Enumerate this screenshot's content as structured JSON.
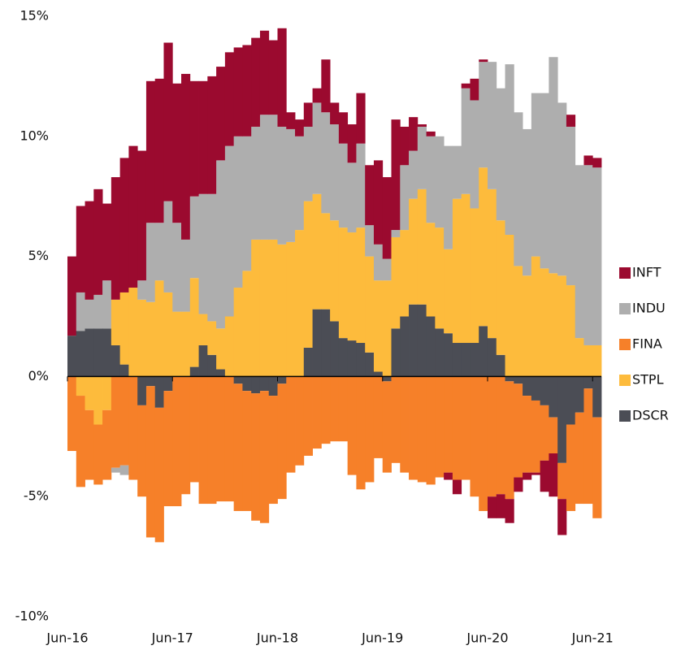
{
  "chart_data": {
    "type": "stacked_bar",
    "categories": [
      "Jun-16",
      null,
      null,
      null,
      null,
      null,
      null,
      null,
      null,
      null,
      null,
      null,
      "Jun-17",
      null,
      null,
      null,
      null,
      null,
      null,
      null,
      null,
      null,
      null,
      null,
      "Jun-18",
      null,
      null,
      null,
      null,
      null,
      null,
      null,
      null,
      null,
      null,
      null,
      "Jun-19",
      null,
      null,
      null,
      null,
      null,
      null,
      null,
      null,
      null,
      null,
      null,
      "Jun-20",
      null,
      null,
      null,
      null,
      null,
      null,
      null,
      null,
      null,
      null,
      null,
      "Jun-21"
    ],
    "series": [
      {
        "name": "DSCR",
        "color": "#4b4d55",
        "values": [
          1.7,
          1.9,
          2.0,
          2.0,
          2.0,
          1.3,
          0.5,
          0.0,
          -1.2,
          -0.4,
          -1.3,
          -0.6,
          0,
          0,
          0.4,
          1.3,
          0.9,
          0.3,
          0,
          -0.3,
          -0.6,
          -0.7,
          -0.6,
          -0.8,
          -0.3,
          0,
          0,
          1.2,
          2.8,
          2.8,
          2.3,
          1.6,
          1.5,
          1.4,
          1.0,
          0.2,
          -0.2,
          2.0,
          2.5,
          3.0,
          3.0,
          2.5,
          2.0,
          1.8,
          1.4,
          1.4,
          1.4,
          2.1,
          1.6,
          0.9,
          -0.2,
          -0.3,
          -0.8,
          -1.0,
          -1.2,
          -1.7,
          -3.6,
          -2.0,
          -1.5,
          -0.5,
          -1.7
        ]
      },
      {
        "name": "STPL",
        "color": "#fdbb3c",
        "values": [
          0,
          -0.8,
          -1.4,
          -2.0,
          -1.4,
          1.9,
          3.0,
          3.7,
          3.2,
          3.1,
          4.0,
          3.5,
          2.7,
          2.7,
          3.7,
          1.3,
          1.4,
          1.7,
          2.5,
          3.7,
          4.4,
          5.7,
          5.7,
          5.7,
          5.5,
          5.6,
          6.1,
          6.1,
          4.8,
          4.0,
          4.2,
          4.6,
          4.5,
          4.8,
          4.0,
          3.8,
          4.0,
          3.8,
          3.6,
          4.4,
          4.8,
          3.9,
          4.2,
          3.5,
          6.0,
          6.2,
          5.6,
          6.6,
          6.2,
          5.6,
          5.9,
          4.6,
          4.2,
          5.0,
          4.5,
          4.3,
          4.2,
          3.8,
          1.6,
          1.3,
          1.3
        ]
      },
      {
        "name": "FINA",
        "color": "#f68029",
        "values": [
          -3.1,
          -3.8,
          -2.9,
          -2.5,
          -2.9,
          -3.8,
          -3.7,
          -4.3,
          -3.8,
          -6.3,
          -5.6,
          -4.8,
          -5.4,
          -4.9,
          -4.4,
          -5.3,
          -5.3,
          -5.2,
          -5.2,
          -5.3,
          -5.0,
          -5.3,
          -5.5,
          -4.5,
          -4.8,
          -4.0,
          -3.7,
          -3.3,
          -3.0,
          -2.8,
          -2.7,
          -2.7,
          -4.1,
          -4.7,
          -4.4,
          -3.4,
          -3.8,
          -3.6,
          -4.0,
          -4.3,
          -4.4,
          -4.5,
          -4.2,
          -4.0,
          -4.3,
          -4.3,
          -5.0,
          -5.6,
          -5.0,
          -4.9,
          -4.9,
          -3.9,
          -3.2,
          -3.0,
          -2.3,
          -1.5,
          -1.5,
          -3.6,
          -3.8,
          -4.8,
          -4.2
        ]
      },
      {
        "name": "INDU",
        "color": "#aeaeae",
        "values": [
          0,
          1.6,
          1.2,
          1.4,
          2.0,
          -0.2,
          -0.4,
          0,
          0.8,
          3.3,
          2.4,
          3.8,
          3.7,
          3.0,
          3.4,
          5.0,
          5.3,
          7.0,
          7.1,
          6.3,
          5.6,
          4.7,
          5.2,
          5.2,
          4.9,
          4.7,
          3.9,
          3.1,
          3.8,
          4.2,
          4.0,
          3.5,
          2.9,
          3.5,
          1.3,
          1.5,
          0.9,
          0.3,
          2.7,
          2.0,
          2.6,
          3.6,
          3.8,
          4.3,
          2.2,
          4.4,
          4.5,
          4.4,
          5.3,
          5.5,
          7.1,
          6.4,
          6.1,
          6.8,
          7.3,
          9.0,
          7.2,
          6.6,
          7.2,
          7.5,
          7.4
        ]
      },
      {
        "name": "INFT",
        "color": "#9b0a2f",
        "values": [
          3.3,
          3.6,
          4.1,
          4.4,
          3.2,
          5.1,
          5.6,
          5.9,
          5.4,
          5.9,
          6.0,
          6.6,
          5.8,
          6.9,
          4.8,
          4.7,
          4.9,
          3.9,
          3.9,
          3.7,
          3.8,
          3.7,
          3.5,
          3.1,
          4.1,
          0.7,
          0.7,
          1.0,
          0.6,
          2.2,
          0.9,
          1.3,
          1.6,
          2.1,
          2.5,
          3.5,
          3.4,
          4.6,
          1.6,
          1.4,
          0.1,
          0.2,
          0,
          -0.3,
          -0.6,
          0.2,
          0.9,
          0.1,
          -0.9,
          -1.0,
          -1.0,
          -0.6,
          -0.3,
          -0.1,
          -1.3,
          -1.8,
          -1.5,
          0.5,
          0,
          0.4,
          0.4
        ]
      }
    ],
    "ylim": [
      -10,
      15
    ],
    "yticks": [
      {
        "value": -10,
        "label": "-10%"
      },
      {
        "value": -5,
        "label": "-5%"
      },
      {
        "value": 0,
        "label": "0%"
      },
      {
        "value": 5,
        "label": "5%"
      },
      {
        "value": 10,
        "label": "10%"
      },
      {
        "value": 15,
        "label": "15%"
      }
    ],
    "legend": "right"
  }
}
